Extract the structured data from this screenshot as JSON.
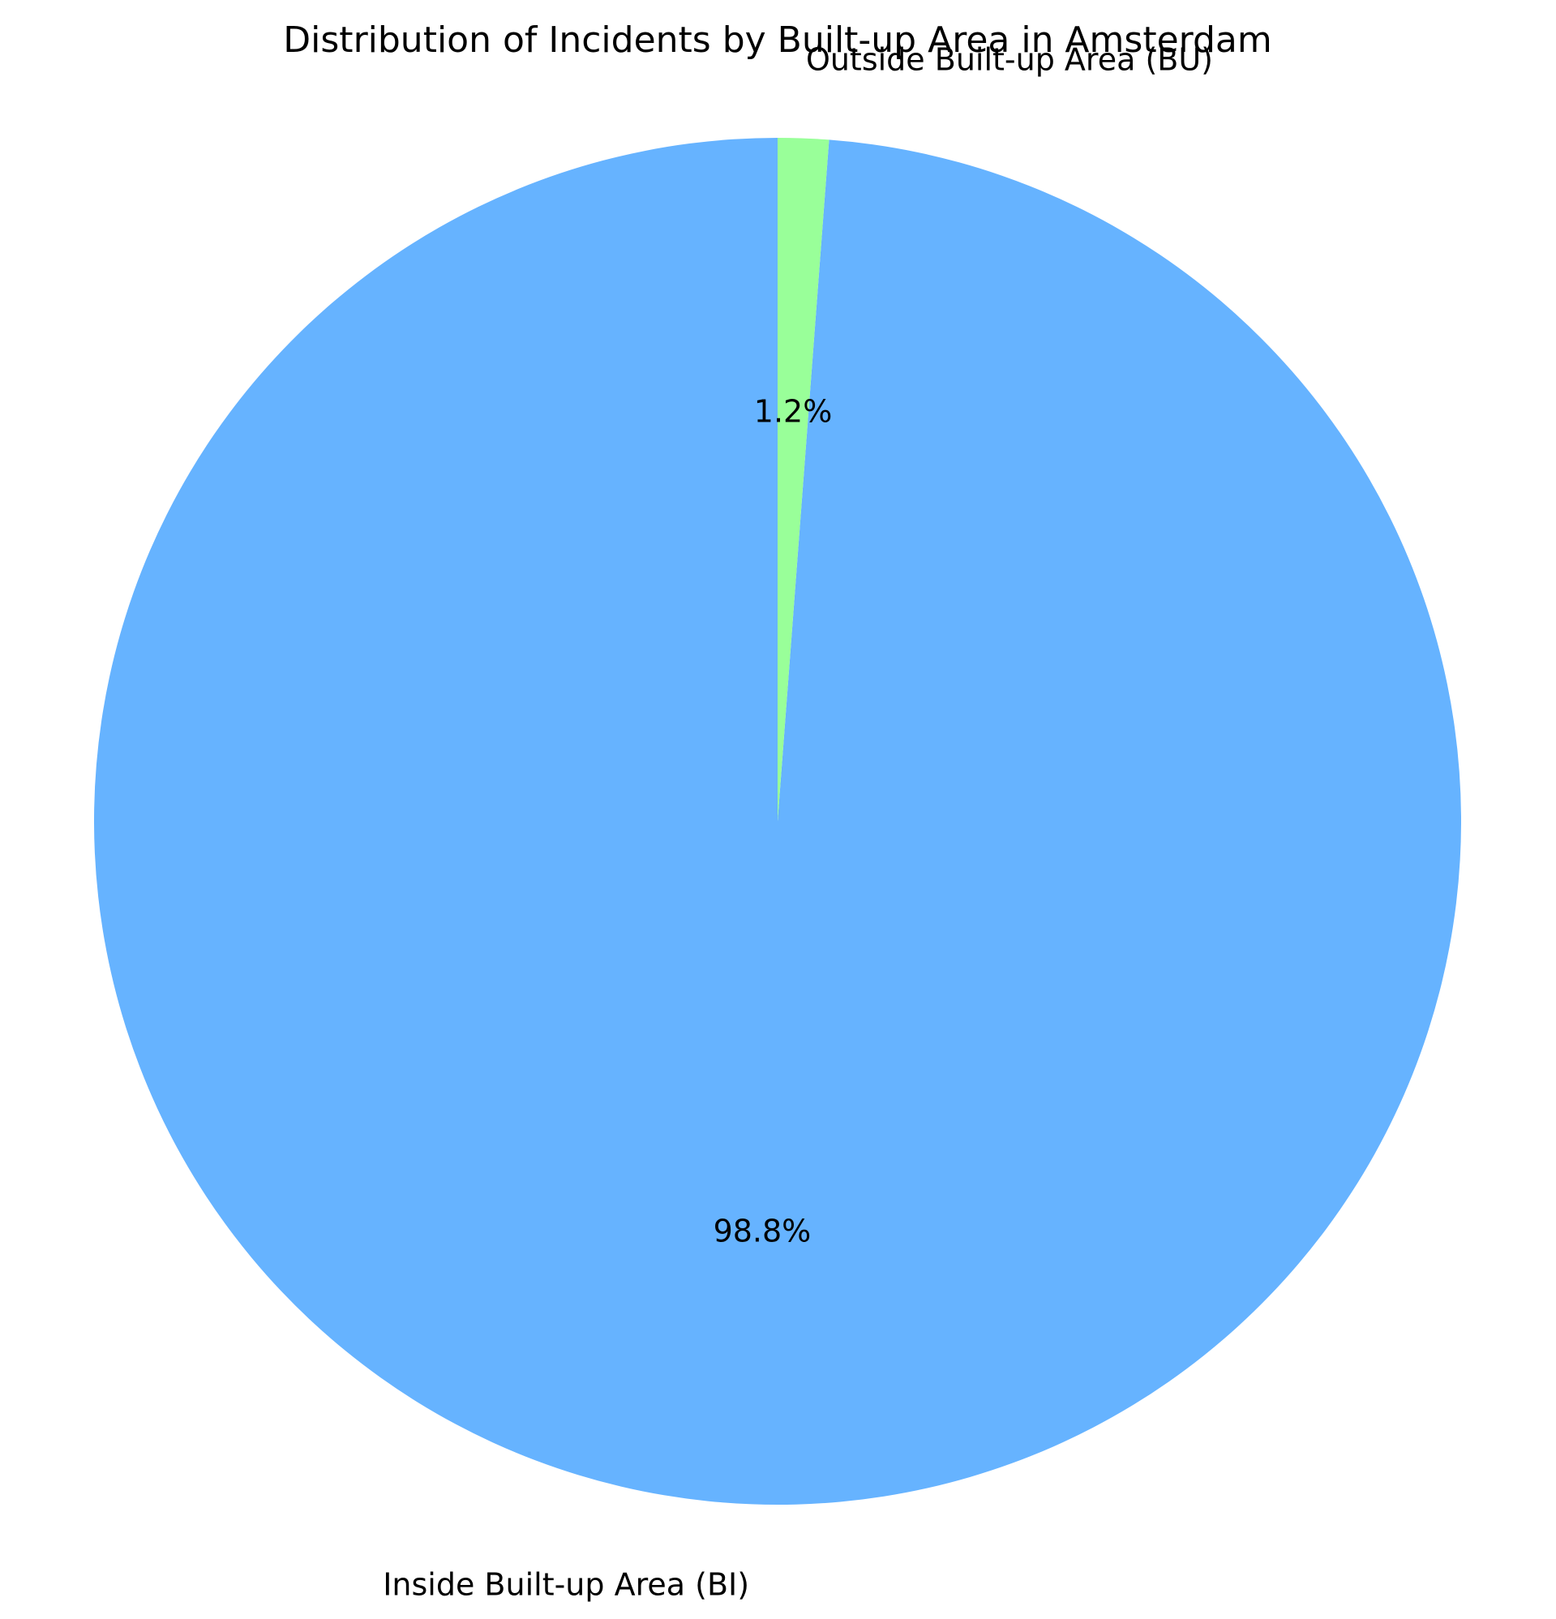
{
  "chart_data": {
    "type": "pie",
    "title": "Distribution of Incidents by Built-up Area in Amsterdam",
    "start_angle_deg": 90,
    "direction": "counterclockwise",
    "slices": [
      {
        "label": "Inside Built-up Area (BI)",
        "value": 98.8,
        "pct_label": "98.8%",
        "color": "#66b3ff"
      },
      {
        "label": "Outside Built-up Area (BU)",
        "value": 1.2,
        "pct_label": "1.2%",
        "color": "#99ff99"
      }
    ]
  }
}
